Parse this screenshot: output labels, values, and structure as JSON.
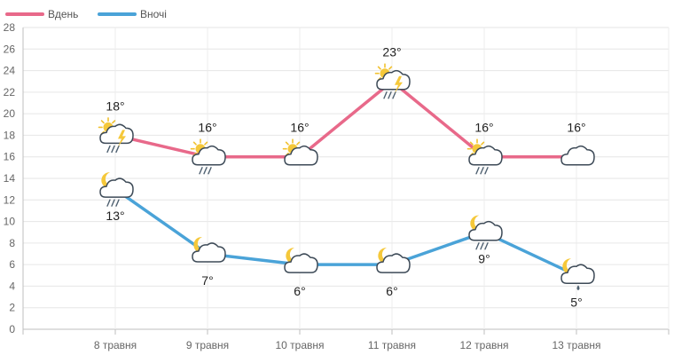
{
  "chart_data": {
    "type": "line",
    "categories": [
      "8 травня",
      "9 травня",
      "10 травня",
      "11 травня",
      "12 травня",
      "13 травня"
    ],
    "series": [
      {
        "name": "Вдень",
        "color": "#e8698a",
        "values": [
          18,
          16,
          16,
          23,
          16,
          16
        ],
        "labels": [
          "18°",
          "16°",
          "16°",
          "23°",
          "16°",
          "16°"
        ],
        "icons": [
          "sun-cloud-rain-thunder-icon",
          "sun-cloud-rain-icon",
          "sun-cloud-icon",
          "sun-cloud-rain-thunder-icon",
          "sun-cloud-rain-icon",
          "cloud-icon"
        ]
      },
      {
        "name": "Вночі",
        "color": "#4aa3d8",
        "values": [
          13,
          7,
          6,
          6,
          9,
          5
        ],
        "labels": [
          "13°",
          "7°",
          "6°",
          "6°",
          "9°",
          "5°"
        ],
        "icons": [
          "moon-cloud-rain-icon",
          "moon-cloud-icon",
          "moon-cloud-icon",
          "moon-cloud-icon",
          "moon-cloud-rain-icon",
          "moon-cloud-drizzle-icon"
        ]
      }
    ],
    "ylim": [
      0,
      28
    ],
    "yticks": [
      "0",
      "2",
      "4",
      "6",
      "8",
      "10",
      "12",
      "14",
      "16",
      "18",
      "20",
      "22",
      "24",
      "26",
      "28"
    ],
    "grid": true,
    "legend": "top-left",
    "title": "",
    "xlabel": "",
    "ylabel": ""
  }
}
